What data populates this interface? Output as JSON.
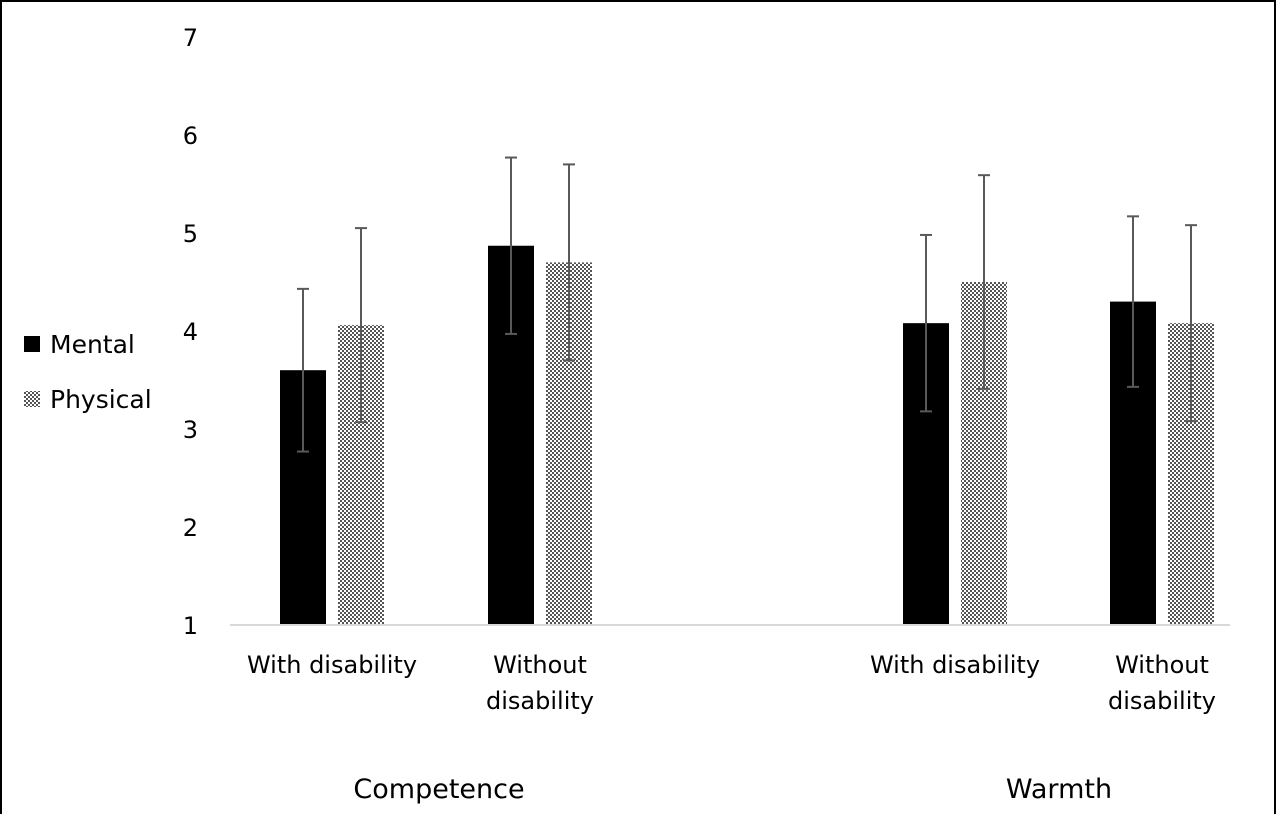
{
  "chart_data": {
    "type": "bar",
    "title": "",
    "xlabel": "",
    "ylabel": "",
    "ylim": [
      1,
      7
    ],
    "yticks": [
      1,
      2,
      3,
      4,
      5,
      6,
      7
    ],
    "grid": false,
    "legend_position": "left",
    "groups": [
      {
        "label": "Competence",
        "categories": [
          {
            "label_lines": [
              "With disability"
            ]
          },
          {
            "label_lines": [
              "Without",
              "disability"
            ]
          }
        ]
      },
      {
        "label": "Warmth",
        "categories": [
          {
            "label_lines": [
              "With disability"
            ]
          },
          {
            "label_lines": [
              "Without",
              "disability"
            ]
          }
        ]
      }
    ],
    "series": [
      {
        "name": "Mental",
        "fill": "solid",
        "color": "#000000",
        "values": [
          3.6,
          4.87,
          4.08,
          4.3
        ],
        "errors": [
          0.83,
          0.9,
          0.9,
          0.87
        ]
      },
      {
        "name": "Physical",
        "fill": "checkered",
        "color": "#555555",
        "values": [
          4.06,
          4.7,
          4.5,
          4.08
        ],
        "errors": [
          0.99,
          1.0,
          1.09,
          1.0
        ]
      }
    ],
    "colors": {
      "axis": "#d9d9d9",
      "error_bar": "#595959"
    }
  }
}
